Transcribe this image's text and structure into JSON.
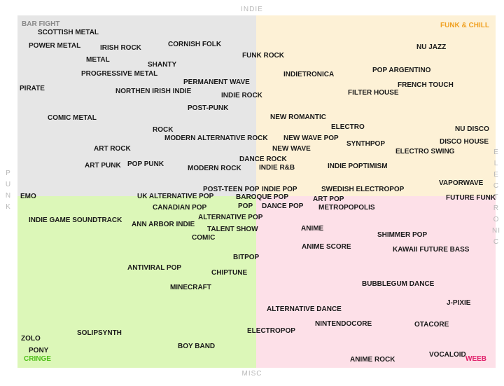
{
  "axes": {
    "top": "INDIE",
    "bottom": "MISC",
    "left": "PUNK",
    "right": "ELECTRONIC"
  },
  "quadrants": {
    "top_left": {
      "label": "BAR FIGHT",
      "color": "#e6e6e6",
      "label_color": "#8a8a8a"
    },
    "top_right": {
      "label": "FUNK & CHILL",
      "color": "#fdf1d6",
      "label_color": "#f0a020"
    },
    "bottom_left": {
      "label": "CRINGE",
      "color": "#dcf7b8",
      "label_color": "#4fbf1a"
    },
    "bottom_right": {
      "label": "WEEB",
      "color": "#fde0e8",
      "label_color": "#e0206a"
    }
  },
  "genres": [
    "SCOTTISH METAL",
    "POWER METAL",
    "IRISH ROCK",
    "CORNISH FOLK",
    "METAL",
    "SHANTY",
    "PROGRESSIVE METAL",
    "PERMANENT WAVE",
    "PIRATE",
    "NORTHEN IRISH INDIE",
    "INDIE ROCK",
    "POST-PUNK",
    "COMIC METAL",
    "ROCK",
    "MODERN ALTERNATIVE ROCK",
    "ART ROCK",
    "DANCE ROCK",
    "ART PUNK",
    "POP PUNK",
    "MODERN ROCK",
    "INDIE R&B",
    "FUNK ROCK",
    "NU JAZZ",
    "POP ARGENTINO",
    "INDIETRONICA",
    "FRENCH TOUCH",
    "FILTER HOUSE",
    "NEW ROMANTIC",
    "ELECTRO",
    "NU DISCO",
    "NEW WAVE POP",
    "SYNTHPOP",
    "DISCO HOUSE",
    "NEW WAVE",
    "ELECTRO SWING",
    "INDIE POPTIMISM",
    "VAPORWAVE",
    "INDIE POP",
    "SWEDISH ELECTROPOP",
    "ART POP",
    "FUTURE FUNK",
    "DANCE POP",
    "METROPOPOLIS",
    "POST-TEEN POP",
    "EMO",
    "UK ALTERNATIVE POP",
    "BAROQUE POP",
    "POP",
    "CANADIAN POP",
    "INDIE GAME SOUNDTRACK",
    "ALTERNATIVE POP",
    "ANN ARBOR INDIE",
    "TALENT SHOW",
    "COMIC",
    "BITPOP",
    "ANTIVIRAL POP",
    "CHIPTUNE",
    "MINECRAFT",
    "SOLIPSYNTH",
    "BOY BAND",
    "ZOLO",
    "PONY",
    "ANIME",
    "SHIMMER POP",
    "ANIME SCORE",
    "KAWAII FUTURE BASS",
    "BUBBLEGUM DANCE",
    "J-PIXIE",
    "ALTERNATIVE DANCE",
    "NINTENDOCORE",
    "OTACORE",
    "ELECTROPOP",
    "VOCALOID",
    "ANIME ROCK"
  ]
}
